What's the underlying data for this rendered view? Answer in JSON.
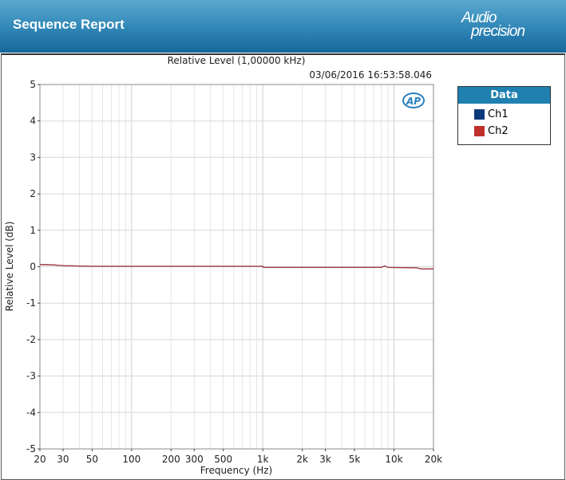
{
  "header": {
    "title": "Sequence Report",
    "logo_text": [
      "Audio",
      "precision"
    ]
  },
  "colors": {
    "ch1": "#0b3a7a",
    "ch2": "#c0302a",
    "header": "#2f86b6"
  },
  "legend": {
    "title": "Data",
    "items": [
      {
        "label": "Ch1",
        "color": "#0b3a7a"
      },
      {
        "label": "Ch2",
        "color": "#c0302a"
      }
    ]
  },
  "chart_data": {
    "type": "line",
    "title": "Relative Level (1,00000 kHz)",
    "timestamp": "03/06/2016 16:53:58.046",
    "xlabel": "Frequency (Hz)",
    "ylabel": "Relative Level (dB)",
    "xscale": "log",
    "xlim": [
      20,
      20000
    ],
    "ylim": [
      -5,
      5
    ],
    "grid": true,
    "xticks": [
      {
        "v": 20,
        "l": "20"
      },
      {
        "v": 30,
        "l": "30"
      },
      {
        "v": 50,
        "l": "50"
      },
      {
        "v": 100,
        "l": "100"
      },
      {
        "v": 200,
        "l": "200"
      },
      {
        "v": 300,
        "l": "300"
      },
      {
        "v": 500,
        "l": "500"
      },
      {
        "v": 1000,
        "l": "1k"
      },
      {
        "v": 2000,
        "l": "2k"
      },
      {
        "v": 3000,
        "l": "3k"
      },
      {
        "v": 5000,
        "l": "5k"
      },
      {
        "v": 10000,
        "l": "10k"
      },
      {
        "v": 20000,
        "l": "20k"
      }
    ],
    "yticks": [
      5,
      4,
      3,
      2,
      1,
      0,
      -1,
      -2,
      -3,
      -4,
      -5
    ],
    "series": [
      {
        "name": "Ch1",
        "color": "#0b3a7a",
        "x": [
          20,
          25,
          30,
          40,
          50,
          100,
          500,
          1000,
          1010,
          5000,
          8000,
          8500,
          9000,
          15000,
          16000,
          20000
        ],
        "y": [
          0.06,
          0.05,
          0.03,
          0.02,
          0.01,
          0.01,
          0.01,
          0.01,
          -0.02,
          -0.02,
          -0.02,
          0.02,
          -0.02,
          -0.03,
          -0.06,
          -0.06
        ]
      },
      {
        "name": "Ch2",
        "color": "#c0302a",
        "x": [
          20,
          25,
          30,
          40,
          50,
          100,
          500,
          1000,
          1010,
          5000,
          8000,
          8500,
          9000,
          15000,
          16000,
          20000
        ],
        "y": [
          0.06,
          0.05,
          0.03,
          0.02,
          0.01,
          0.01,
          0.01,
          0.01,
          -0.02,
          -0.02,
          -0.02,
          0.02,
          -0.02,
          -0.03,
          -0.06,
          -0.06
        ]
      }
    ]
  }
}
